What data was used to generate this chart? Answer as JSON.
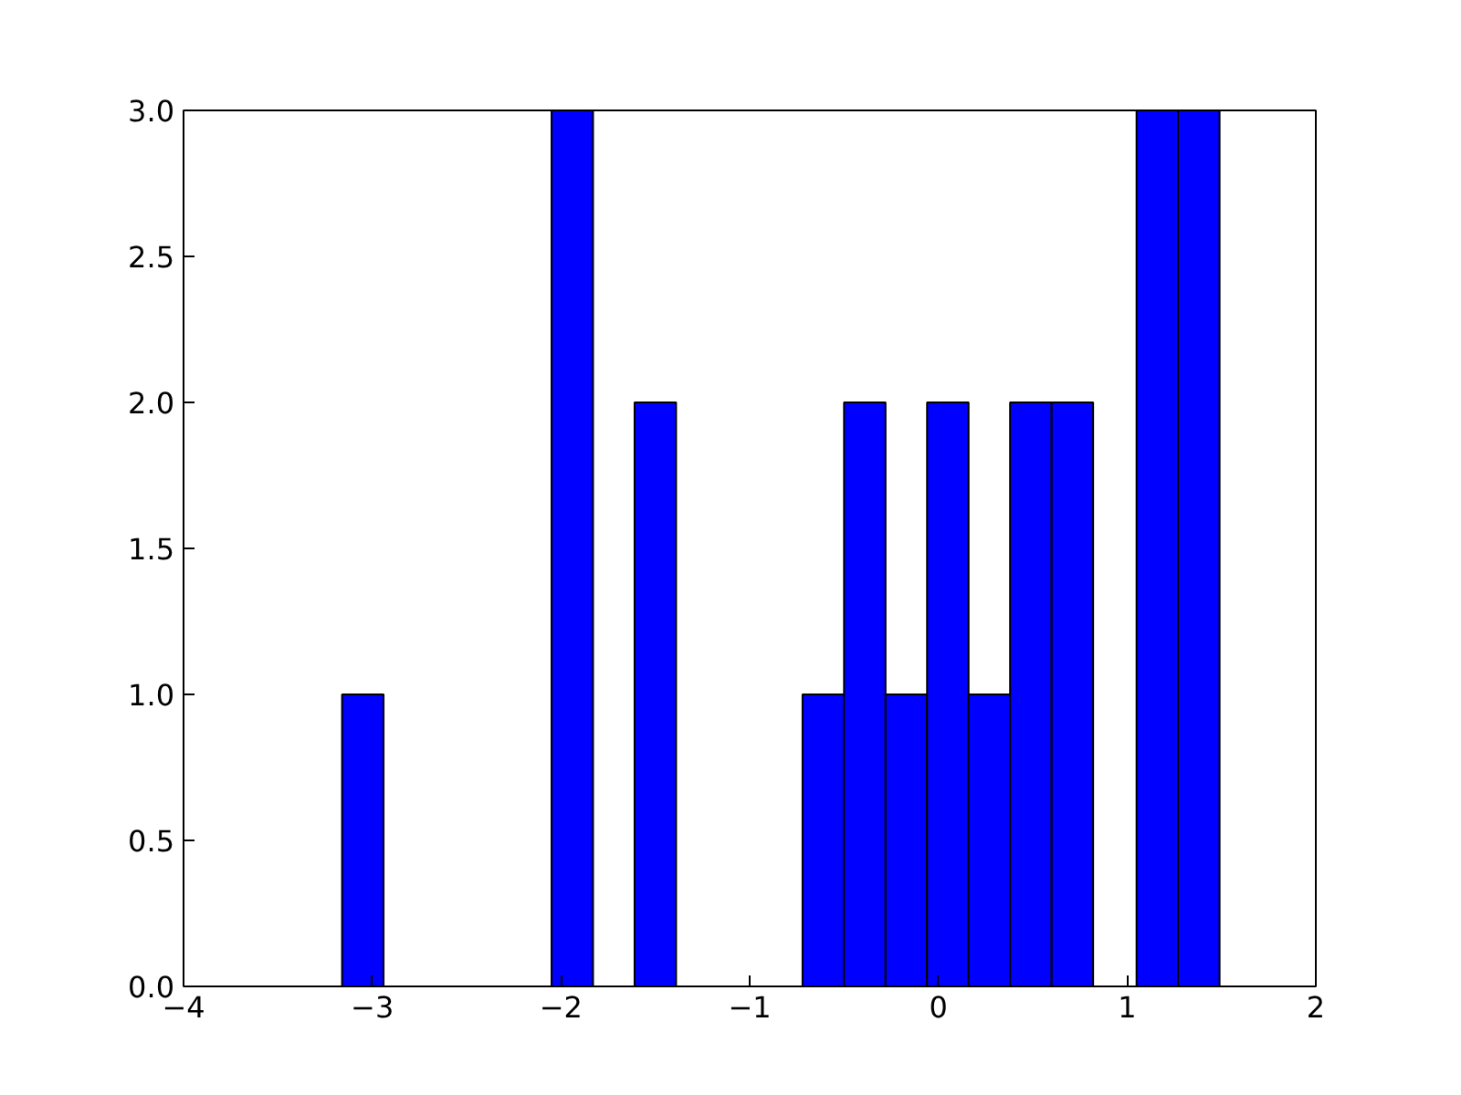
{
  "chart_data": {
    "type": "histogram",
    "bins": [
      -3.16,
      -2.94,
      -2.05,
      -1.83,
      -1.61,
      -1.39,
      -0.72,
      -0.5,
      -0.28,
      -0.06,
      0.16,
      0.38,
      0.6,
      0.82,
      1.05,
      1.27,
      1.49
    ],
    "values": [
      1,
      0,
      3,
      0,
      2,
      0,
      1,
      2,
      1,
      2,
      1,
      2,
      2,
      0,
      3,
      3
    ],
    "color": "#0000ff",
    "xlim": [
      -4,
      2
    ],
    "xticks": [
      {
        "value": -4,
        "label": "−4"
      },
      {
        "value": -3,
        "label": "−3"
      },
      {
        "value": -2,
        "label": "−2"
      },
      {
        "value": -1,
        "label": "−1"
      },
      0,
      1,
      2
    ],
    "ylim": [
      0,
      3
    ],
    "yticks": [
      {
        "value": 0,
        "label": "0.0"
      },
      {
        "value": 0.5,
        "label": "0.5"
      },
      {
        "value": 1,
        "label": "1.0"
      },
      {
        "value": 1.5,
        "label": "1.5"
      },
      {
        "value": 2,
        "label": "2.0"
      },
      {
        "value": 2.5,
        "label": "2.5"
      },
      {
        "value": 3,
        "label": "3.0"
      }
    ],
    "grid": false
  }
}
